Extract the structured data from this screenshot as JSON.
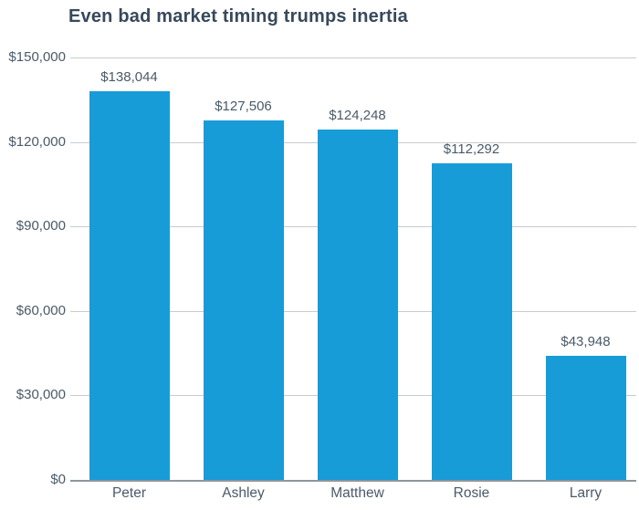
{
  "chart_data": {
    "type": "bar",
    "title": "Even bad market timing trumps inertia",
    "categories": [
      "Peter",
      "Ashley",
      "Matthew",
      "Rosie",
      "Larry"
    ],
    "values": [
      138044,
      127506,
      124248,
      112292,
      43948
    ],
    "value_labels": [
      "$138,044",
      "$127,506",
      "$124,248",
      "$112,292",
      "$43,948"
    ],
    "xlabel": "",
    "ylabel": "",
    "ylim": [
      0,
      150000
    ],
    "yticks": [
      {
        "value": 150000,
        "label": "$150,000"
      },
      {
        "value": 120000,
        "label": "$120,000"
      },
      {
        "value": 90000,
        "label": "$90,000"
      },
      {
        "value": 60000,
        "label": "$60,000"
      },
      {
        "value": 30000,
        "label": "$30,000"
      },
      {
        "value": 0,
        "label": "$0"
      }
    ],
    "grid": true,
    "legend": "none",
    "colors": {
      "bar": "#189cd8",
      "title": "#37495b",
      "axis_text": "#4a5a69",
      "gridline": "#c7ccd1",
      "axis_line": "#8f969c",
      "background": "#ffffff"
    }
  }
}
